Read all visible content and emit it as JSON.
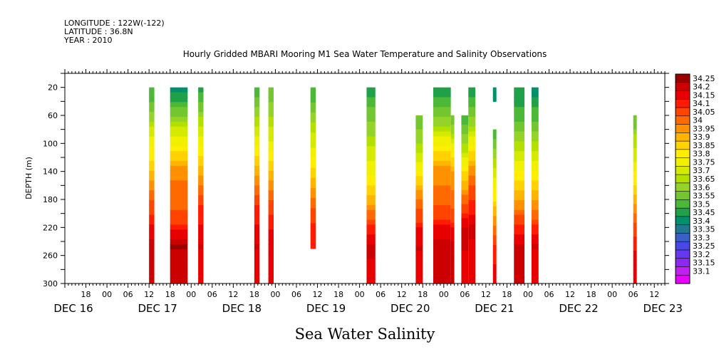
{
  "header": {
    "lines": [
      "LONGITUDE : 122W(-122)",
      "LATITUDE : 36.8N",
      "YEAR : 2010"
    ],
    "title": "Hourly Gridded MBARI Mooring M1 Sea Water Temperature and Salinity Observations"
  },
  "footer": {
    "variable": "Sea Water Salinity"
  },
  "chart_data": {
    "type": "heatmap",
    "title": "Hourly Gridded MBARI Mooring M1 Sea Water Temperature and Salinity Observations",
    "xlabel": "",
    "ylabel": "DEPTH (m)",
    "x_start": "2010-12-16T12:00",
    "x_end": "2010-12-23T15:00",
    "xlim_hours": [
      0,
      171
    ],
    "ylim": [
      300,
      0
    ],
    "y_ticks": [
      20,
      60,
      100,
      140,
      180,
      220,
      260,
      300
    ],
    "x_ticks": [
      {
        "hour": 6,
        "label": "18"
      },
      {
        "hour": 12,
        "label": "00"
      },
      {
        "hour": 18,
        "label": "06"
      },
      {
        "hour": 24,
        "label": "12"
      },
      {
        "hour": 30,
        "label": "18"
      },
      {
        "hour": 36,
        "label": "00"
      },
      {
        "hour": 42,
        "label": "06"
      },
      {
        "hour": 48,
        "label": "12"
      },
      {
        "hour": 54,
        "label": "18"
      },
      {
        "hour": 60,
        "label": "00"
      },
      {
        "hour": 66,
        "label": "06"
      },
      {
        "hour": 72,
        "label": "12"
      },
      {
        "hour": 78,
        "label": "18"
      },
      {
        "hour": 84,
        "label": "00"
      },
      {
        "hour": 90,
        "label": "06"
      },
      {
        "hour": 96,
        "label": "12"
      },
      {
        "hour": 102,
        "label": "18"
      },
      {
        "hour": 108,
        "label": "00"
      },
      {
        "hour": 114,
        "label": "06"
      },
      {
        "hour": 120,
        "label": "12"
      },
      {
        "hour": 126,
        "label": "18"
      },
      {
        "hour": 132,
        "label": "00"
      },
      {
        "hour": 138,
        "label": "06"
      },
      {
        "hour": 144,
        "label": "12"
      },
      {
        "hour": 150,
        "label": "18"
      },
      {
        "hour": 156,
        "label": "00"
      },
      {
        "hour": 162,
        "label": "06"
      },
      {
        "hour": 168,
        "label": "12"
      }
    ],
    "date_labels": [
      {
        "hour": 0,
        "label": "DEC 16"
      },
      {
        "hour": 24,
        "label": "DEC 17"
      },
      {
        "hour": 48,
        "label": "DEC 18"
      },
      {
        "hour": 72,
        "label": "DEC 19"
      },
      {
        "hour": 96,
        "label": "DEC 20"
      },
      {
        "hour": 120,
        "label": "DEC 21"
      },
      {
        "hour": 144,
        "label": "DEC 22"
      },
      {
        "hour": 168,
        "label": "DEC 23"
      }
    ],
    "colorbar": {
      "levels": [
        "34.25",
        "34.2",
        "34.15",
        "34.1",
        "34.05",
        "34",
        "33.95",
        "33.9",
        "33.85",
        "33.8",
        "33.75",
        "33.7",
        "33.65",
        "33.6",
        "33.55",
        "33.5",
        "33.45",
        "33.4",
        "33.35",
        "33.3",
        "33.25",
        "33.2",
        "33.15",
        "33.1"
      ],
      "colors": [
        "#990000",
        "#cc0000",
        "#e80000",
        "#ff1a00",
        "#ff4400",
        "#ff6a00",
        "#ff9000",
        "#ffb400",
        "#ffd200",
        "#ffee00",
        "#f0f000",
        "#d4ea00",
        "#b4e000",
        "#94d428",
        "#74c630",
        "#4cb838",
        "#20a048",
        "#00906c",
        "#207890",
        "#3a60c8",
        "#4848e6",
        "#6838f0",
        "#8c28f0",
        "#c020f0",
        "#e600ff"
      ]
    },
    "columns": [
      {
        "t0": 24,
        "t1": 25.5,
        "d0": 20,
        "values": [
          33.5,
          33.58,
          33.7,
          33.8,
          33.88,
          33.98,
          34.08,
          34.15,
          34.22,
          34.2
        ]
      },
      {
        "t0": 30,
        "t1": 35,
        "d0": 20,
        "values": [
          33.42,
          33.55,
          33.7,
          33.82,
          33.95,
          34.02,
          34.03,
          34.12,
          34.25,
          34.22
        ]
      },
      {
        "t0": 38,
        "t1": 39.5,
        "d0": 20,
        "values": [
          33.48,
          33.58,
          33.72,
          33.82,
          33.92,
          34.0,
          34.1,
          34.16,
          34.2,
          34.18
        ]
      },
      {
        "t0": 54,
        "t1": 55.5,
        "d0": 20,
        "values": [
          33.5,
          33.6,
          33.72,
          33.82,
          33.92,
          34.0,
          34.1,
          34.16,
          34.2,
          34.18
        ]
      },
      {
        "t0": 58,
        "t1": 59.5,
        "d0": 20,
        "values": [
          33.55,
          33.62,
          33.7,
          33.78,
          33.88,
          33.98,
          34.08,
          34.14,
          34.18,
          34.16
        ]
      },
      {
        "t0": 70,
        "t1": 71.5,
        "d0": 20,
        "d1": 250,
        "values": [
          33.5,
          33.58,
          33.68,
          33.76,
          33.85,
          33.95,
          34.05,
          34.12
        ]
      },
      {
        "t0": 86,
        "t1": 88.5,
        "d0": 20,
        "values": [
          33.48,
          33.55,
          33.62,
          33.7,
          33.78,
          33.85,
          33.98,
          34.1,
          34.22,
          34.18
        ]
      },
      {
        "t0": 100,
        "t1": 102,
        "d0": 60,
        "values": [
          33.55,
          33.62,
          33.72,
          33.82,
          33.95,
          34.05,
          34.15,
          34.2,
          34.18
        ]
      },
      {
        "t0": 105,
        "t1": 110,
        "d0": 20,
        "values": [
          33.48,
          33.55,
          33.68,
          33.82,
          33.95,
          34.0,
          34.05,
          34.15,
          34.22,
          34.2
        ]
      },
      {
        "t0": 110,
        "t1": 111,
        "d0": 60,
        "values": [
          33.55,
          33.68,
          33.82,
          33.95,
          34.0,
          34.05,
          34.15,
          34.22,
          34.2
        ]
      },
      {
        "t0": 113,
        "t1": 115,
        "d0": 60,
        "values": [
          33.52,
          33.6,
          33.72,
          33.85,
          33.98,
          34.08,
          34.22,
          34.2,
          34.16
        ]
      },
      {
        "t0": 115,
        "t1": 117,
        "d0": 20,
        "values": [
          33.48,
          33.55,
          33.68,
          33.82,
          33.95,
          34.05,
          34.12,
          34.22,
          34.18,
          34.16
        ]
      },
      {
        "t0": 122,
        "t1": 123,
        "d0": 20,
        "d1": 40,
        "values": [
          33.4
        ]
      },
      {
        "t0": 122,
        "t1": 123,
        "d0": 80,
        "values": [
          33.5,
          33.6,
          33.7,
          33.8,
          33.9,
          34.0,
          34.1,
          34.16
        ]
      },
      {
        "t0": 128,
        "t1": 131,
        "d0": 20,
        "values": [
          33.45,
          33.5,
          33.58,
          33.68,
          33.78,
          33.88,
          33.98,
          34.12,
          34.22,
          34.2
        ]
      },
      {
        "t0": 133,
        "t1": 135,
        "d0": 20,
        "values": [
          33.42,
          33.5,
          33.58,
          33.68,
          33.78,
          33.88,
          33.98,
          34.1,
          34.2,
          34.18
        ]
      },
      {
        "t0": 162,
        "t1": 163,
        "d0": 60,
        "values": [
          33.55,
          33.65,
          33.72,
          33.8,
          33.88,
          33.98,
          34.08,
          34.14,
          34.18
        ]
      }
    ]
  }
}
